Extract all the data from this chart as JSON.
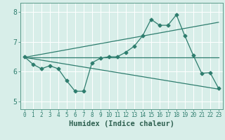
{
  "xlabel": "Humidex (Indice chaleur)",
  "bg_color": "#d8eee9",
  "grid_color": "#ffffff",
  "line_color": "#2e7d6e",
  "xlim": [
    -0.5,
    23.5
  ],
  "ylim": [
    4.75,
    8.3
  ],
  "yticks": [
    5,
    6,
    7,
    8
  ],
  "xticks": [
    0,
    1,
    2,
    3,
    4,
    5,
    6,
    7,
    8,
    9,
    10,
    11,
    12,
    13,
    14,
    15,
    16,
    17,
    18,
    19,
    20,
    21,
    22,
    23
  ],
  "series1_x": [
    0,
    1,
    2,
    3,
    4,
    5,
    6,
    7,
    8,
    9,
    10,
    11,
    12,
    13,
    14,
    15,
    16,
    17,
    18,
    19,
    20,
    21,
    22,
    23
  ],
  "series1_y": [
    6.5,
    6.25,
    6.1,
    6.2,
    6.1,
    5.7,
    5.35,
    5.35,
    6.3,
    6.45,
    6.5,
    6.5,
    6.65,
    6.85,
    7.2,
    7.75,
    7.55,
    7.55,
    7.9,
    7.2,
    6.55,
    5.95,
    5.97,
    5.45
  ],
  "series2_x": [
    0,
    23
  ],
  "series2_y": [
    6.48,
    6.48
  ],
  "series3_x": [
    0,
    23
  ],
  "series3_y": [
    6.48,
    7.65
  ],
  "series4_x": [
    0,
    23
  ],
  "series4_y": [
    6.48,
    5.42
  ],
  "spine_color": "#5a9a8a",
  "tick_color": "#2e7d6e",
  "xlabel_color": "#2e6050",
  "xlabel_fontsize": 7.5,
  "tick_fontsize_x": 5.5,
  "tick_fontsize_y": 7.0
}
